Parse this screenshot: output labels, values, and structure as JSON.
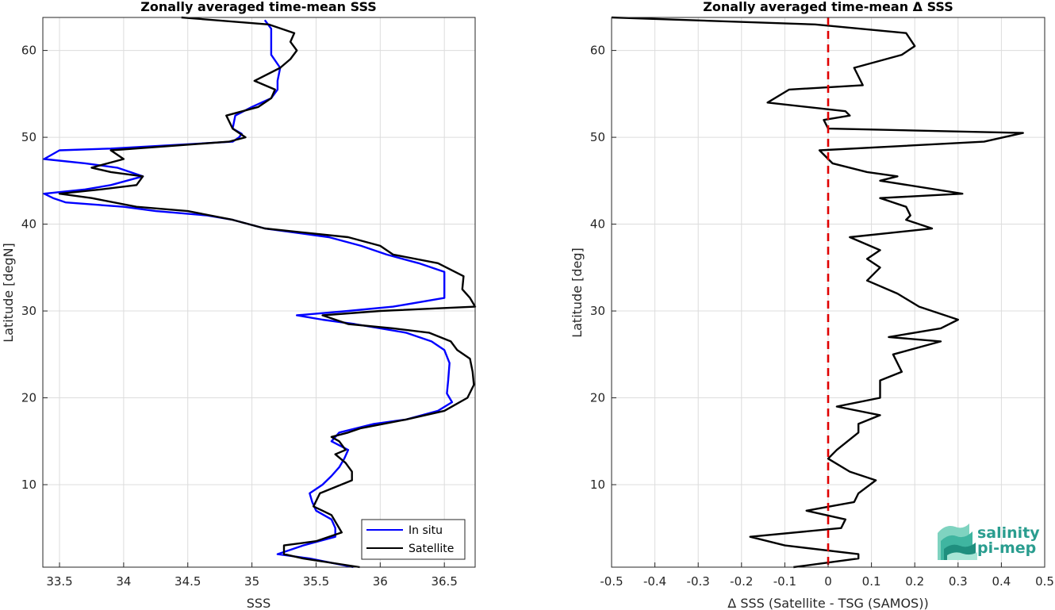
{
  "chart_data": [
    {
      "type": "line",
      "title": "Zonally averaged time-mean SSS",
      "xlabel": "SSS",
      "ylabel": "Latitude [degN]",
      "xlim": [
        33.37,
        36.74
      ],
      "ylim": [
        0.5,
        63.8
      ],
      "xticks": [
        33.5,
        34,
        34.5,
        35,
        35.5,
        36,
        36.5
      ],
      "xtick_labels": [
        "33.5",
        "34",
        "34.5",
        "35",
        "35.5",
        "36",
        "36.5"
      ],
      "yticks": [
        10,
        20,
        30,
        40,
        50,
        60
      ],
      "ytick_labels": [
        "10",
        "20",
        "30",
        "40",
        "50",
        "60"
      ],
      "grid": true,
      "legend_position": "bottom-right",
      "series": [
        {
          "name": "In situ",
          "color": "#0000ff",
          "points": [
            [
              35.79,
              0.5
            ],
            [
              35.45,
              1.5
            ],
            [
              35.2,
              2.0
            ],
            [
              35.4,
              3.0
            ],
            [
              35.65,
              4.0
            ],
            [
              35.65,
              5.0
            ],
            [
              35.62,
              6.0
            ],
            [
              35.5,
              7.0
            ],
            [
              35.47,
              8.0
            ],
            [
              35.45,
              9.0
            ],
            [
              35.55,
              10.0
            ],
            [
              35.62,
              11.0
            ],
            [
              35.68,
              12.0
            ],
            [
              35.72,
              13.0
            ],
            [
              35.75,
              14.0
            ],
            [
              35.62,
              15.0
            ],
            [
              35.68,
              16.0
            ],
            [
              35.95,
              17.0
            ],
            [
              36.2,
              17.5
            ],
            [
              36.45,
              18.5
            ],
            [
              36.56,
              19.5
            ],
            [
              36.52,
              20.5
            ],
            [
              36.53,
              22.0
            ],
            [
              36.54,
              24.0
            ],
            [
              36.5,
              25.5
            ],
            [
              36.4,
              26.5
            ],
            [
              36.2,
              27.5
            ],
            [
              35.8,
              28.5
            ],
            [
              35.55,
              29.0
            ],
            [
              35.35,
              29.5
            ],
            [
              35.75,
              30.0
            ],
            [
              36.1,
              30.5
            ],
            [
              36.5,
              31.5
            ],
            [
              36.5,
              33.0
            ],
            [
              36.5,
              34.5
            ],
            [
              36.3,
              35.5
            ],
            [
              36.05,
              36.5
            ],
            [
              35.85,
              37.5
            ],
            [
              35.6,
              38.5
            ],
            [
              35.1,
              39.5
            ],
            [
              34.85,
              40.5
            ],
            [
              34.65,
              41.0
            ],
            [
              34.25,
              41.5
            ],
            [
              34.0,
              42.0
            ],
            [
              33.55,
              42.5
            ],
            [
              33.45,
              43.0
            ],
            [
              33.38,
              43.5
            ],
            [
              33.7,
              44.0
            ],
            [
              33.9,
              44.5
            ],
            [
              34.15,
              45.5
            ],
            [
              33.95,
              46.5
            ],
            [
              33.7,
              47.0
            ],
            [
              33.38,
              47.5
            ],
            [
              33.5,
              48.5
            ],
            [
              33.9,
              48.7
            ],
            [
              34.85,
              49.5
            ],
            [
              34.9,
              50.0
            ],
            [
              34.92,
              50.4
            ],
            [
              34.85,
              51.0
            ],
            [
              34.87,
              52.5
            ],
            [
              35.0,
              53.5
            ],
            [
              35.15,
              54.5
            ],
            [
              35.2,
              55.5
            ],
            [
              35.2,
              56.5
            ],
            [
              35.22,
              58.0
            ],
            [
              35.15,
              59.5
            ],
            [
              35.15,
              61.5
            ],
            [
              35.15,
              62.5
            ],
            [
              35.1,
              63.5
            ]
          ]
        },
        {
          "name": "Satellite",
          "color": "#000000",
          "points": [
            [
              35.84,
              0.5
            ],
            [
              35.4,
              1.5
            ],
            [
              35.25,
              2.0
            ],
            [
              35.25,
              3.0
            ],
            [
              35.5,
              3.5
            ],
            [
              35.7,
              4.5
            ],
            [
              35.66,
              5.5
            ],
            [
              35.62,
              6.5
            ],
            [
              35.55,
              7.0
            ],
            [
              35.48,
              7.5
            ],
            [
              35.53,
              9.0
            ],
            [
              35.78,
              10.5
            ],
            [
              35.78,
              11.5
            ],
            [
              35.73,
              12.5
            ],
            [
              35.65,
              13.5
            ],
            [
              35.73,
              14.0
            ],
            [
              35.68,
              15.0
            ],
            [
              35.62,
              15.5
            ],
            [
              35.75,
              16.0
            ],
            [
              35.85,
              16.5
            ],
            [
              36.2,
              17.5
            ],
            [
              36.5,
              18.5
            ],
            [
              36.68,
              20.0
            ],
            [
              36.73,
              21.5
            ],
            [
              36.72,
              23.0
            ],
            [
              36.7,
              24.5
            ],
            [
              36.6,
              25.5
            ],
            [
              36.55,
              26.5
            ],
            [
              36.38,
              27.5
            ],
            [
              36.1,
              28.0
            ],
            [
              35.75,
              28.5
            ],
            [
              35.55,
              29.5
            ],
            [
              36.0,
              30.0
            ],
            [
              36.74,
              30.5
            ],
            [
              36.7,
              31.5
            ],
            [
              36.64,
              32.5
            ],
            [
              36.65,
              34.0
            ],
            [
              36.45,
              35.5
            ],
            [
              36.1,
              36.5
            ],
            [
              36.0,
              37.5
            ],
            [
              35.75,
              38.5
            ],
            [
              35.1,
              39.5
            ],
            [
              34.85,
              40.5
            ],
            [
              34.5,
              41.5
            ],
            [
              34.1,
              42.0
            ],
            [
              33.75,
              43.0
            ],
            [
              33.5,
              43.5
            ],
            [
              33.82,
              44.0
            ],
            [
              34.1,
              44.5
            ],
            [
              34.15,
              45.5
            ],
            [
              33.9,
              46.0
            ],
            [
              33.75,
              46.5
            ],
            [
              34.0,
              47.5
            ],
            [
              33.9,
              48.5
            ],
            [
              34.82,
              49.5
            ],
            [
              34.95,
              50.0
            ],
            [
              34.85,
              51.0
            ],
            [
              34.8,
              52.5
            ],
            [
              35.05,
              53.5
            ],
            [
              35.15,
              54.5
            ],
            [
              35.18,
              55.5
            ],
            [
              35.02,
              56.5
            ],
            [
              35.22,
              58.0
            ],
            [
              35.3,
              59.0
            ],
            [
              35.35,
              60.0
            ],
            [
              35.3,
              61.0
            ],
            [
              35.33,
              62.0
            ],
            [
              35.13,
              63.0
            ],
            [
              34.45,
              63.8
            ]
          ]
        }
      ]
    },
    {
      "type": "line",
      "title": "Zonally averaged time-mean Δ SSS",
      "xlabel": "Δ SSS (Satellite - TSG (SAMOS))",
      "ylabel": "Latitude [deg]",
      "xlim": [
        -0.5,
        0.5
      ],
      "ylim": [
        0.5,
        63.8
      ],
      "xticks": [
        -0.5,
        -0.4,
        -0.3,
        -0.2,
        -0.1,
        0,
        0.1,
        0.2,
        0.3,
        0.4,
        0.5
      ],
      "xtick_labels": [
        "-0.5",
        "-0.4",
        "-0.3",
        "-0.2",
        "-0.1",
        "0",
        "0.1",
        "0.2",
        "0.3",
        "0.4",
        "0.5"
      ],
      "yticks": [
        10,
        20,
        30,
        40,
        50,
        60
      ],
      "ytick_labels": [
        "10",
        "20",
        "30",
        "40",
        "50",
        "60"
      ],
      "grid": true,
      "reference_line": {
        "x": 0,
        "color": "#e00000",
        "style": "dashed"
      },
      "series": [
        {
          "name": "",
          "color": "#000000",
          "points": [
            [
              -0.08,
              0.5
            ],
            [
              0.07,
              1.5
            ],
            [
              0.07,
              2.0
            ],
            [
              -0.1,
              3.0
            ],
            [
              -0.18,
              4.0
            ],
            [
              0.03,
              5.0
            ],
            [
              0.04,
              6.0
            ],
            [
              -0.05,
              7.0
            ],
            [
              0.06,
              8.0
            ],
            [
              0.07,
              9.0
            ],
            [
              0.11,
              10.5
            ],
            [
              0.05,
              11.5
            ],
            [
              0.0,
              13.0
            ],
            [
              0.02,
              14.0
            ],
            [
              0.07,
              16.0
            ],
            [
              0.07,
              17.0
            ],
            [
              0.12,
              18.0
            ],
            [
              0.02,
              19.0
            ],
            [
              0.12,
              20.0
            ],
            [
              0.12,
              22.0
            ],
            [
              0.17,
              23.0
            ],
            [
              0.15,
              25.0
            ],
            [
              0.26,
              26.5
            ],
            [
              0.14,
              27.0
            ],
            [
              0.26,
              28.0
            ],
            [
              0.3,
              29.0
            ],
            [
              0.21,
              30.5
            ],
            [
              0.16,
              32.0
            ],
            [
              0.09,
              33.5
            ],
            [
              0.12,
              35.0
            ],
            [
              0.09,
              36.0
            ],
            [
              0.12,
              37.0
            ],
            [
              0.05,
              38.5
            ],
            [
              0.24,
              39.5
            ],
            [
              0.18,
              40.5
            ],
            [
              0.19,
              41.0
            ],
            [
              0.18,
              42.0
            ],
            [
              0.12,
              43.0
            ],
            [
              0.31,
              43.5
            ],
            [
              0.12,
              45.0
            ],
            [
              0.16,
              45.5
            ],
            [
              0.09,
              46.0
            ],
            [
              0.01,
              47.0
            ],
            [
              -0.02,
              48.5
            ],
            [
              0.36,
              49.5
            ],
            [
              0.45,
              50.5
            ],
            [
              0.0,
              51.0
            ],
            [
              -0.01,
              52.0
            ],
            [
              0.05,
              52.5
            ],
            [
              0.04,
              53.0
            ],
            [
              -0.14,
              54.0
            ],
            [
              -0.09,
              55.5
            ],
            [
              0.08,
              56.0
            ],
            [
              0.06,
              58.0
            ],
            [
              0.17,
              59.5
            ],
            [
              0.2,
              60.5
            ],
            [
              0.18,
              62.0
            ],
            [
              -0.03,
              63.0
            ],
            [
              -0.5,
              63.8
            ]
          ]
        }
      ]
    }
  ],
  "legend": {
    "items": [
      {
        "label": "In situ",
        "color": "#0000ff"
      },
      {
        "label": "Satellite",
        "color": "#000000"
      }
    ]
  },
  "logo": {
    "line1": "salinity",
    "line2": "pi-mep",
    "color": "#2a9d8f"
  }
}
